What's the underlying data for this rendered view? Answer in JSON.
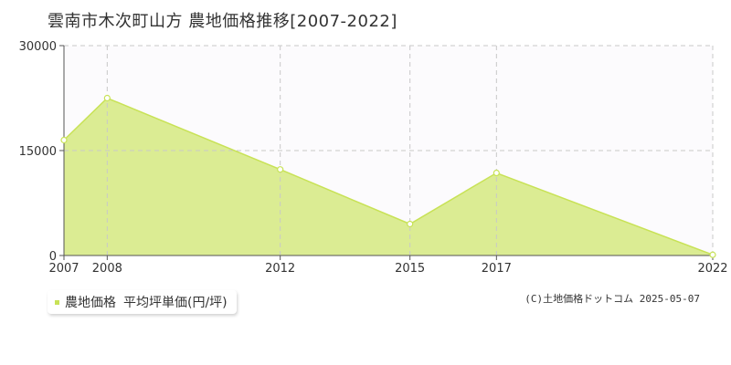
{
  "title": "雲南市木次町山方 農地価格推移[2007-2022]",
  "colors": {
    "line": "#c8e256",
    "fill": "#dbec93",
    "point_fill": "#ffffff",
    "grid": "#c8c8c8",
    "axis": "#555555",
    "plot_bg": "#fcfbfd"
  },
  "legend": {
    "series_name": "農地価格",
    "unit_label": "平均坪単価(円/坪)"
  },
  "copyright": "(C)土地価格ドットコム 2025-05-07",
  "chart_data": {
    "type": "area",
    "title": "雲南市木次町山方 農地価格推移[2007-2022]",
    "x": [
      2007,
      2008,
      2012,
      2015,
      2017,
      2022
    ],
    "x_tick_labels": [
      "2007",
      "2008",
      "2012",
      "2015",
      "2017",
      "2022"
    ],
    "y_ticks": [
      0,
      15000,
      30000
    ],
    "y_tick_labels": [
      "0",
      "15000",
      "30000"
    ],
    "ylim": [
      0,
      30000
    ],
    "grid": true,
    "legend_position": "bottom-left",
    "series": [
      {
        "name": "農地価格",
        "values": [
          16500,
          22500,
          12300,
          4500,
          11800,
          100
        ]
      }
    ]
  }
}
